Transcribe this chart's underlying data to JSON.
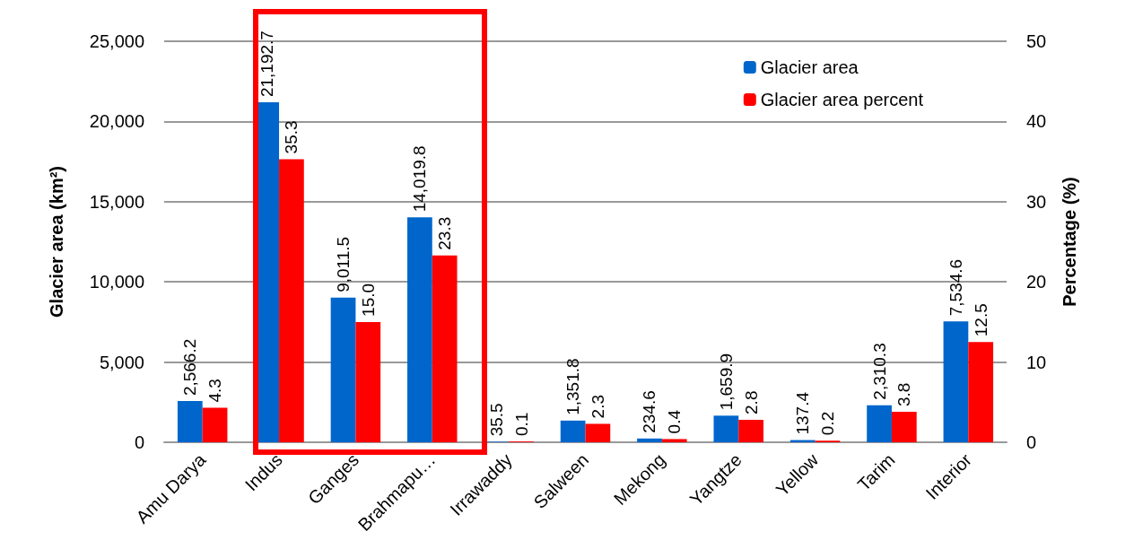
{
  "chart_data": {
    "type": "bar",
    "categories": [
      "Amu Darya",
      "Indus",
      "Ganges",
      "Brahmapu…",
      "Irrawaddy",
      "Salween",
      "Mekong",
      "Yangtze",
      "Yellow",
      "Tarim",
      "Interior"
    ],
    "series": [
      {
        "name": "Glacier area",
        "color": "#0066cc",
        "values": [
          2566.2,
          21192.7,
          9011.5,
          14019.8,
          35.5,
          1351.8,
          234.6,
          1659.9,
          137.4,
          2310.3,
          7534.6
        ],
        "value_labels": [
          "2,566.2",
          "21,192.7",
          "9,011.5",
          "14,019.8",
          "35.5",
          "1,351.8",
          "234.6",
          "1,659.9",
          "137.4",
          "2,310.3",
          "7,534.6"
        ]
      },
      {
        "name": "Glacier area percent",
        "color": "#ff0000",
        "axis": "y2",
        "values": [
          4.3,
          35.3,
          15.0,
          23.3,
          0.1,
          2.3,
          0.4,
          2.8,
          0.2,
          3.8,
          12.5
        ],
        "value_labels": [
          "4.3",
          "35.3",
          "15.0",
          "23.3",
          "0.1",
          "2.3",
          "0.4",
          "2.8",
          "0.2",
          "3.8",
          "12.5"
        ]
      }
    ],
    "ylabel": "Glacier area (km²)",
    "y2label": "Percentage (%)",
    "ylim": [
      0,
      25000
    ],
    "yticks": [
      {
        "value": 0,
        "label": "0"
      },
      {
        "value": 5000,
        "label": "5,000"
      },
      {
        "value": 10000,
        "label": "10,000"
      },
      {
        "value": 15000,
        "label": "15,000"
      },
      {
        "value": 20000,
        "label": "20,000"
      },
      {
        "value": 25000,
        "label": "25,000"
      }
    ],
    "y2lim": [
      0,
      50
    ],
    "y2ticks": [
      0,
      10,
      20,
      30,
      40,
      50
    ],
    "grid": "y",
    "legend": "top right"
  }
}
